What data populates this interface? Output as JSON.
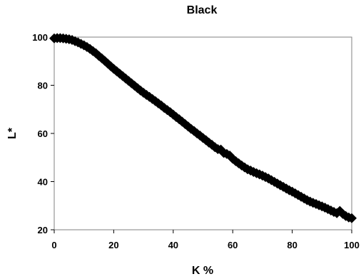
{
  "chart_data": {
    "type": "scatter",
    "title": "Black",
    "xlabel": "K %",
    "ylabel": "L*",
    "xlim": [
      0,
      100
    ],
    "ylim": [
      20,
      100
    ],
    "xticks": [
      0,
      20,
      40,
      60,
      80,
      100
    ],
    "yticks": [
      20,
      40,
      60,
      80,
      100
    ],
    "grid": false,
    "legend": "none",
    "marker": "diamond",
    "marker_color": "#000000",
    "plot_border_color": "#808080",
    "series": [
      {
        "x": [
          0,
          1,
          2,
          3,
          4,
          5,
          6,
          7,
          8,
          9,
          10,
          11,
          12,
          13,
          14,
          15,
          16,
          17,
          18,
          19,
          20,
          21,
          22,
          23,
          24,
          25,
          26,
          27,
          28,
          29,
          30,
          31,
          32,
          33,
          34,
          35,
          36,
          37,
          38,
          39,
          40,
          41,
          42,
          43,
          44,
          45,
          46,
          47,
          48,
          49,
          50,
          51,
          52,
          53,
          54,
          55,
          56,
          57,
          58,
          59,
          60,
          61,
          62,
          63,
          64,
          65,
          66,
          67,
          68,
          69,
          70,
          71,
          72,
          73,
          74,
          75,
          76,
          77,
          78,
          79,
          80,
          81,
          82,
          83,
          84,
          85,
          86,
          87,
          88,
          89,
          90,
          91,
          92,
          93,
          94,
          95,
          96,
          97,
          98,
          99,
          100
        ],
        "y": [
          99.5,
          99.6,
          99.6,
          99.5,
          99.3,
          99.1,
          98.8,
          98.3,
          97.8,
          97.2,
          96.6,
          95.9,
          95.1,
          94.2,
          93.3,
          92.2,
          91.2,
          90.1,
          89.0,
          87.9,
          86.8,
          85.8,
          84.8,
          83.8,
          82.8,
          81.8,
          80.8,
          79.8,
          78.8,
          77.8,
          76.9,
          76.0,
          75.2,
          74.3,
          73.4,
          72.5,
          71.6,
          70.6,
          69.7,
          68.8,
          67.8,
          66.8,
          65.9,
          64.9,
          63.9,
          62.9,
          61.9,
          61.0,
          60.0,
          59.1,
          58.1,
          57.2,
          56.2,
          55.3,
          54.3,
          53.5,
          53.3,
          51.9,
          51.5,
          50.8,
          49.5,
          48.5,
          47.6,
          46.7,
          45.9,
          45.1,
          44.6,
          44.0,
          43.5,
          43.0,
          42.5,
          41.9,
          41.3,
          40.6,
          39.9,
          39.2,
          38.5,
          37.8,
          37.1,
          36.4,
          35.8,
          35.1,
          34.4,
          33.7,
          33.0,
          32.3,
          31.7,
          31.2,
          30.7,
          30.2,
          29.7,
          29.2,
          28.6,
          28.0,
          27.4,
          26.9,
          27.8,
          26.6,
          25.7,
          25.1,
          24.8
        ]
      }
    ]
  }
}
